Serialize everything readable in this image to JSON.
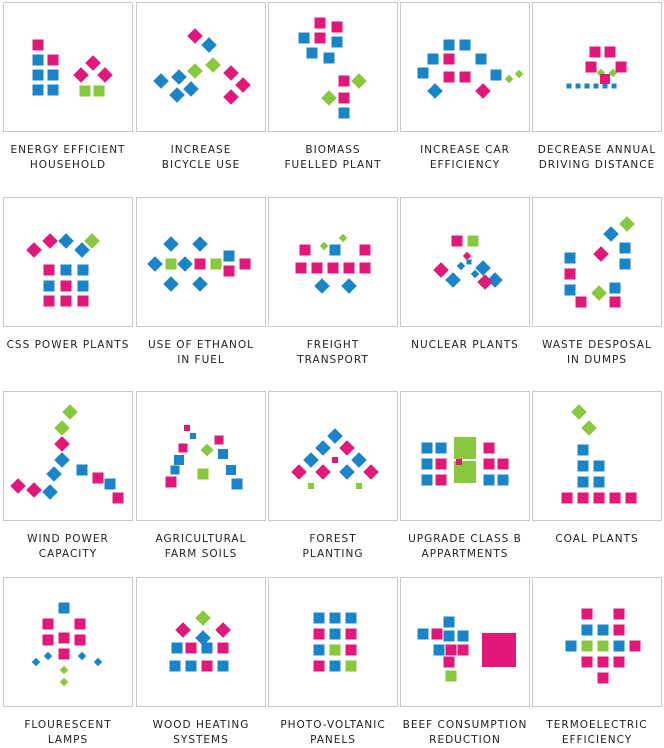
{
  "colors": {
    "blue": "#1a84c9",
    "pink": "#e3177a",
    "green": "#88c83c"
  },
  "tiles": [
    {
      "id": "energy-efficient-household",
      "lines": [
        "ENERGY EFFICIENT",
        "HOUSEHOLD"
      ]
    },
    {
      "id": "increase-bicycle-use",
      "lines": [
        "INCREASE",
        "BICYCLE USE"
      ]
    },
    {
      "id": "biomass-fuelled-plant",
      "lines": [
        "BIOMASS",
        "FUELLED PLANT"
      ]
    },
    {
      "id": "increase-car-efficiency",
      "lines": [
        "INCREASE CAR",
        "EFFICIENCY"
      ]
    },
    {
      "id": "decrease-annual-driving-distance",
      "lines": [
        "DECREASE ANNUAL",
        "DRIVING DISTANCE"
      ]
    },
    {
      "id": "css-power-plants",
      "lines": [
        "CSS POWER PLANTS"
      ]
    },
    {
      "id": "use-of-ethanol-in-fuel",
      "lines": [
        "USE OF ETHANOL",
        "IN FUEL"
      ]
    },
    {
      "id": "freight-transport",
      "lines": [
        "FREIGHT",
        "TRANSPORT"
      ]
    },
    {
      "id": "nuclear-plants",
      "lines": [
        "NUCLEAR PLANTS"
      ]
    },
    {
      "id": "waste-desposal-in-dumps",
      "lines": [
        "WASTE DESPOSAL",
        "IN DUMPS"
      ]
    },
    {
      "id": "wind-power-capacity",
      "lines": [
        "WIND POWER",
        "CAPACITY"
      ]
    },
    {
      "id": "agricultural-farm-soils",
      "lines": [
        "AGRICULTURAL",
        "FARM SOILS"
      ]
    },
    {
      "id": "forest-planting",
      "lines": [
        "FOREST",
        "PLANTING"
      ]
    },
    {
      "id": "upgrade-class-b-appartments",
      "lines": [
        "UPGRADE CLASS B",
        "APPARTMENTS"
      ]
    },
    {
      "id": "coal-plants",
      "lines": [
        "COAL PLANTS"
      ]
    },
    {
      "id": "flourescent-lamps",
      "lines": [
        "FLOURESCENT",
        "LAMPS"
      ]
    },
    {
      "id": "wood-heating-systems",
      "lines": [
        "WOOD HEATING",
        "SYSTEMS"
      ]
    },
    {
      "id": "photo-voltanic-panels",
      "lines": [
        "PHOTO-VOLTANIC",
        "PANELS"
      ]
    },
    {
      "id": "beef-consumption-reduction",
      "lines": [
        "BEEF CONSUMPTION",
        "REDUCTION"
      ]
    },
    {
      "id": "termoelectric-efficiency",
      "lines": [
        "TERMOELECTRIC",
        "EFFICIENCY"
      ]
    }
  ]
}
